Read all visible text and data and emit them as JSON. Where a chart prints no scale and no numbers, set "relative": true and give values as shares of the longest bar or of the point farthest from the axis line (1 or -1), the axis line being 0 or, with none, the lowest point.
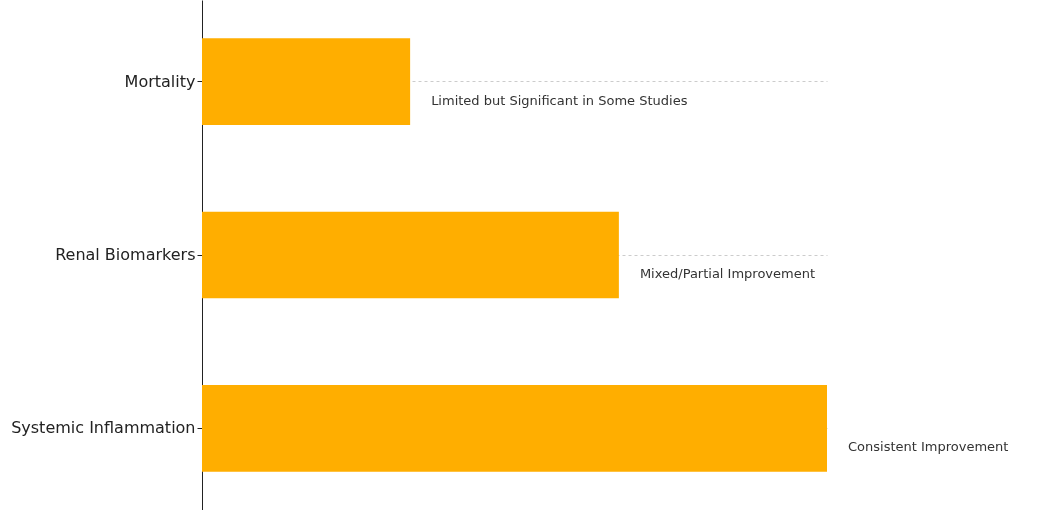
{
  "chart_data": {
    "type": "bar",
    "orientation": "horizontal",
    "relative": true,
    "categories": [
      "Mortality",
      "Renal Biomarkers",
      "Systemic Inflammation"
    ],
    "values": [
      0.333,
      0.667,
      1
    ],
    "color": "#ffae00",
    "annotations": [
      {
        "text": "Limited but Significant in Some Studies",
        "x": 0.333,
        "y": "Mortality"
      },
      {
        "text": "Mixed/Partial Improvement",
        "x": 0.667,
        "y": "Renal Biomarkers"
      },
      {
        "text": "Consistent Improvement",
        "x": 1,
        "y": "Systemic Inflammation"
      }
    ],
    "grid": "y"
  }
}
